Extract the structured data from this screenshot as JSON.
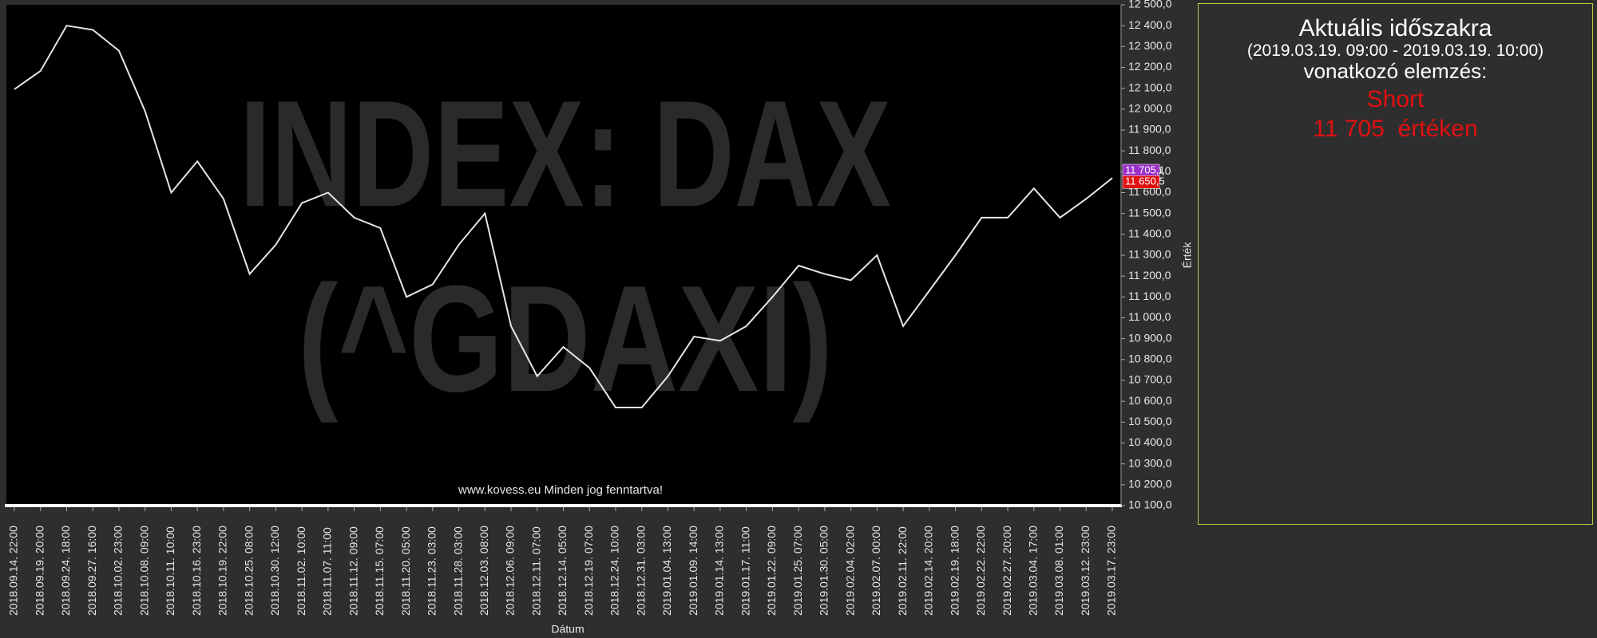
{
  "chart_data": {
    "type": "line",
    "watermark": [
      "INDEX: DAX",
      "(^GDAXI)"
    ],
    "credit": "www.kovess.eu Minden jog fenntartva!",
    "x_label": "Dátum",
    "y_label": "Érték",
    "categories": [
      "2018.09.14. 22:00",
      "2018.09.19. 20:00",
      "2018.09.24. 18:00",
      "2018.09.27. 16:00",
      "2018.10.02. 23:00",
      "2018.10.08. 09:00",
      "2018.10.11. 10:00",
      "2018.10.16. 23:00",
      "2018.10.19. 22:00",
      "2018.10.25. 08:00",
      "2018.10.30. 12:00",
      "2018.11.02. 10:00",
      "2018.11.07. 11:00",
      "2018.11.12. 09:00",
      "2018.11.15. 07:00",
      "2018.11.20. 05:00",
      "2018.11.23. 03:00",
      "2018.11.28. 03:00",
      "2018.12.03. 08:00",
      "2018.12.06. 09:00",
      "2018.12.11. 07:00",
      "2018.12.14. 05:00",
      "2018.12.19. 07:00",
      "2018.12.24. 10:00",
      "2018.12.31. 03:00",
      "2019.01.04. 13:00",
      "2019.01.09. 14:00",
      "2019.01.14. 13:00",
      "2019.01.17. 11:00",
      "2019.01.22. 09:00",
      "2019.01.25. 07:00",
      "2019.01.30. 05:00",
      "2019.02.04. 02:00",
      "2019.02.07. 00:00",
      "2019.02.11. 22:00",
      "2019.02.14. 20:00",
      "2019.02.19. 18:00",
      "2019.02.22. 22:00",
      "2019.02.27. 20:00",
      "2019.03.04. 17:00",
      "2019.03.08. 01:00",
      "2019.03.12. 23:00",
      "2019.03.17. 23:00"
    ],
    "values": [
      12095,
      12183,
      12400,
      12380,
      12280,
      11990,
      11600,
      11750,
      11570,
      11210,
      11350,
      11550,
      11600,
      11480,
      11430,
      11100,
      11160,
      11350,
      11500,
      10960,
      10720,
      10860,
      10760,
      10570,
      10570,
      10720,
      10910,
      10890,
      10960,
      11100,
      11250,
      11210,
      11180,
      11300,
      10960,
      11130,
      11300,
      11480,
      11480,
      11620,
      11480,
      11570,
      11670
    ],
    "color": "#e6e6e6",
    "ylim": [
      10100,
      12500
    ],
    "yticks": [
      {
        "value": 10100,
        "label": "10 100,0"
      },
      {
        "value": 10200,
        "label": "10 200,0"
      },
      {
        "value": 10300,
        "label": "10 300,0"
      },
      {
        "value": 10400,
        "label": "10 400,0"
      },
      {
        "value": 10500,
        "label": "10 500,0"
      },
      {
        "value": 10600,
        "label": "10 600,0"
      },
      {
        "value": 10700,
        "label": "10 700,0"
      },
      {
        "value": 10800,
        "label": "10 800,0"
      },
      {
        "value": 10900,
        "label": "10 900,0"
      },
      {
        "value": 11000,
        "label": "11 000,0"
      },
      {
        "value": 11100,
        "label": "11 100,0"
      },
      {
        "value": 11200,
        "label": "11 200,0"
      },
      {
        "value": 11300,
        "label": "11 300,0"
      },
      {
        "value": 11400,
        "label": "11 400,0"
      },
      {
        "value": 11500,
        "label": "11 500,0"
      },
      {
        "value": 11600,
        "label": "11 600,0"
      },
      {
        "value": 11700,
        "label": "11 700,0"
      },
      {
        "value": 11800,
        "label": "11 800,0"
      },
      {
        "value": 11900,
        "label": "11 900,0"
      },
      {
        "value": 12000,
        "label": "12 000,0"
      },
      {
        "value": 12100,
        "label": "12 100,0"
      },
      {
        "value": 12200,
        "label": "12 200,0"
      },
      {
        "value": 12300,
        "label": "12 300,0"
      },
      {
        "value": 12400,
        "label": "12 400,0"
      },
      {
        "value": 12500,
        "label": "12 500,0"
      }
    ],
    "price_tags": [
      {
        "value": 11705.1,
        "label": "11 705,1",
        "color": "#9b2fc9"
      },
      {
        "value": 11650.5,
        "label": "11 650,5",
        "color": "#e01010"
      }
    ],
    "grid": false
  },
  "panel": {
    "title": "Aktuális időszakra",
    "period": "(2019.03.19. 09:00 - 2019.03.19. 10:00)",
    "subtitle": "vonatkozó elemzés:",
    "signal": "Short",
    "target": "11 705  értéken"
  }
}
